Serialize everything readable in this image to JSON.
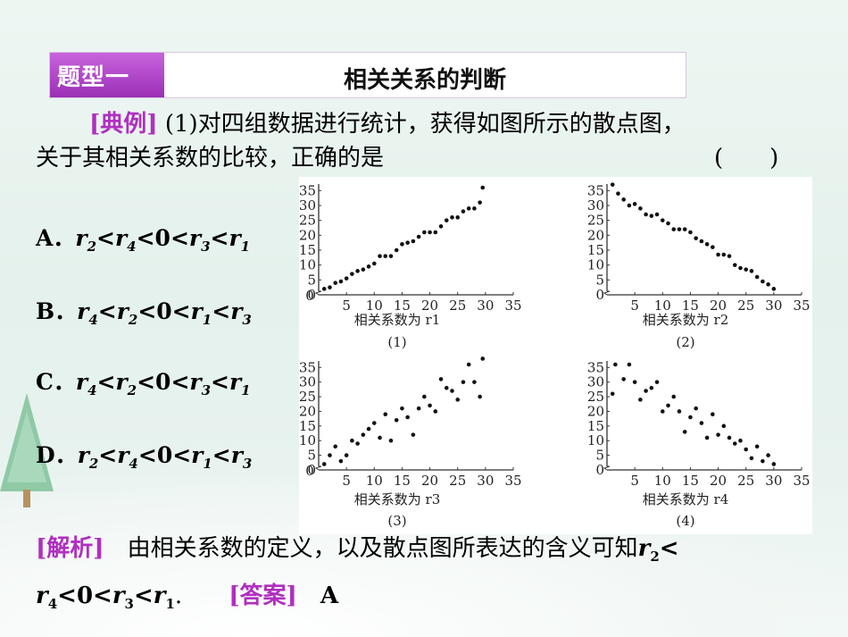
{
  "header": {
    "tag": "题型一",
    "title": "相关关系的判断"
  },
  "question": {
    "tag": "[典例]",
    "line1": "(1)对四组数据进行统计，获得如图所示的散点图，",
    "line2": "关于其相关系数的比较，正确的是",
    "paren": "(　　)"
  },
  "options": [
    {
      "letter": "A．",
      "r_a": "r",
      "s_a": "2",
      "lt1": "<",
      "r_b": "r",
      "s_b": "4",
      "lt2": "<",
      "zero": "0",
      "lt3": "<",
      "r_c": "r",
      "s_c": "3",
      "lt4": "<",
      "r_d": "r",
      "s_d": "1"
    },
    {
      "letter": "B．",
      "r_a": "r",
      "s_a": "4",
      "lt1": "<",
      "r_b": "r",
      "s_b": "2",
      "lt2": "<",
      "zero": "0",
      "lt3": "<",
      "r_c": "r",
      "s_c": "1",
      "lt4": "<",
      "r_d": "r",
      "s_d": "3"
    },
    {
      "letter": "C．",
      "r_a": "r",
      "s_a": "4",
      "lt1": "<",
      "r_b": "r",
      "s_b": "2",
      "lt2": "<",
      "zero": "0",
      "lt3": "<",
      "r_c": "r",
      "s_c": "3",
      "lt4": "<",
      "r_d": "r",
      "s_d": "1"
    },
    {
      "letter": "D．",
      "r_a": "r",
      "s_a": "2",
      "lt1": "<",
      "r_b": "r",
      "s_b": "4",
      "lt2": "<",
      "zero": "0",
      "lt3": "<",
      "r_c": "r",
      "s_c": "1",
      "lt4": "<",
      "r_d": "r",
      "s_d": "3"
    }
  ],
  "answer": {
    "tag": "[解析]",
    "text": "　由相关系数的定义，以及散点图所表达的含义可知",
    "r2": "r",
    "s2": "2",
    "lt1": "<",
    "r4": "r",
    "s4": "4",
    "lt2": "<",
    "zero": "0",
    "lt3": "<",
    "r3": "r",
    "s3": "3",
    "lt4": "<",
    "r1": "r",
    "s1": "1",
    "period": ".",
    "answer_tag": "[答案]",
    "answer_value": "A"
  },
  "chart_data": [
    {
      "type": "scatter",
      "xlabel": "相关系数为 r1",
      "caption": "(1)",
      "xticks": [
        5,
        10,
        15,
        20,
        25,
        30,
        35
      ],
      "yticks": [
        0,
        5,
        10,
        15,
        20,
        25,
        30,
        35
      ],
      "x_origin_label": "0",
      "xlim": [
        0,
        35
      ],
      "ylim": [
        0,
        36
      ],
      "x": [
        1,
        2,
        3,
        4,
        5,
        6,
        7,
        8,
        9,
        10,
        11,
        12,
        13,
        14,
        15,
        16,
        17,
        18,
        19,
        20,
        21,
        22,
        23,
        24,
        25,
        26,
        27,
        28,
        29,
        29.5
      ],
      "y": [
        2,
        2.5,
        4,
        4.5,
        5.5,
        7,
        8,
        8.5,
        9.5,
        10.5,
        13,
        13,
        13,
        15,
        17,
        17.5,
        18,
        19.5,
        21,
        21,
        21,
        23,
        25,
        26,
        26,
        28,
        29,
        29,
        31,
        36
      ]
    },
    {
      "type": "scatter",
      "xlabel": "相关系数为 r2",
      "caption": "(2)",
      "xticks": [
        5,
        10,
        15,
        20,
        25,
        30,
        35
      ],
      "yticks": [
        0,
        5,
        10,
        15,
        20,
        25,
        30,
        35
      ],
      "x_origin_label": "",
      "xlim": [
        0,
        35
      ],
      "ylim": [
        0,
        36
      ],
      "x": [
        1,
        2,
        3,
        4,
        5,
        6,
        7,
        8,
        9,
        10,
        11,
        12,
        13,
        14,
        15,
        16,
        17,
        18,
        19,
        20,
        21,
        22,
        23,
        24,
        25,
        26,
        27,
        28,
        29,
        30
      ],
      "y": [
        37,
        34,
        32,
        30,
        30.5,
        29,
        27,
        26.5,
        27,
        25,
        24,
        22,
        22,
        22,
        21,
        19,
        18,
        17,
        16,
        13.5,
        13.5,
        13,
        10,
        9,
        8.5,
        8,
        6,
        4.5,
        3.5,
        2
      ]
    },
    {
      "type": "scatter",
      "xlabel": "相关系数为 r3",
      "caption": "(3)",
      "xticks": [
        5,
        10,
        15,
        20,
        25,
        30,
        35
      ],
      "yticks": [
        0,
        5,
        10,
        15,
        20,
        25,
        30,
        35
      ],
      "x_origin_label": "0",
      "xlim": [
        0,
        35
      ],
      "ylim": [
        0,
        36
      ],
      "x": [
        1,
        2,
        3,
        4,
        5,
        6,
        7,
        8,
        9,
        10,
        11,
        12,
        13,
        14,
        15,
        16,
        17,
        18,
        19,
        20,
        21,
        22,
        23,
        24,
        25,
        26,
        27,
        28,
        29,
        29.5
      ],
      "y": [
        2,
        5,
        8,
        3,
        5,
        10,
        9,
        12,
        14,
        16,
        11,
        19,
        10,
        17,
        21,
        18,
        12,
        21,
        25,
        22,
        20,
        31,
        28,
        27,
        24,
        30,
        36,
        30,
        25,
        38
      ]
    },
    {
      "type": "scatter",
      "xlabel": "相关系数为 r4",
      "caption": "(4)",
      "xticks": [
        5,
        10,
        15,
        20,
        25,
        30,
        35
      ],
      "yticks": [
        0,
        5,
        10,
        15,
        20,
        25,
        30,
        35
      ],
      "x_origin_label": "",
      "xlim": [
        0,
        35
      ],
      "ylim": [
        0,
        36
      ],
      "x": [
        1,
        1.5,
        3,
        4,
        5,
        6,
        7,
        8,
        9,
        10,
        11,
        12,
        13,
        14,
        15,
        16,
        17,
        18,
        19,
        20,
        21,
        22,
        23,
        24,
        25,
        26,
        27,
        28,
        29,
        30
      ],
      "y": [
        26,
        36,
        31,
        36,
        30,
        24,
        27,
        28,
        30,
        20,
        22,
        25,
        20,
        13,
        18,
        21,
        16,
        11,
        19,
        12,
        15,
        11,
        9,
        10,
        7,
        4,
        8,
        3,
        5,
        2
      ]
    }
  ]
}
